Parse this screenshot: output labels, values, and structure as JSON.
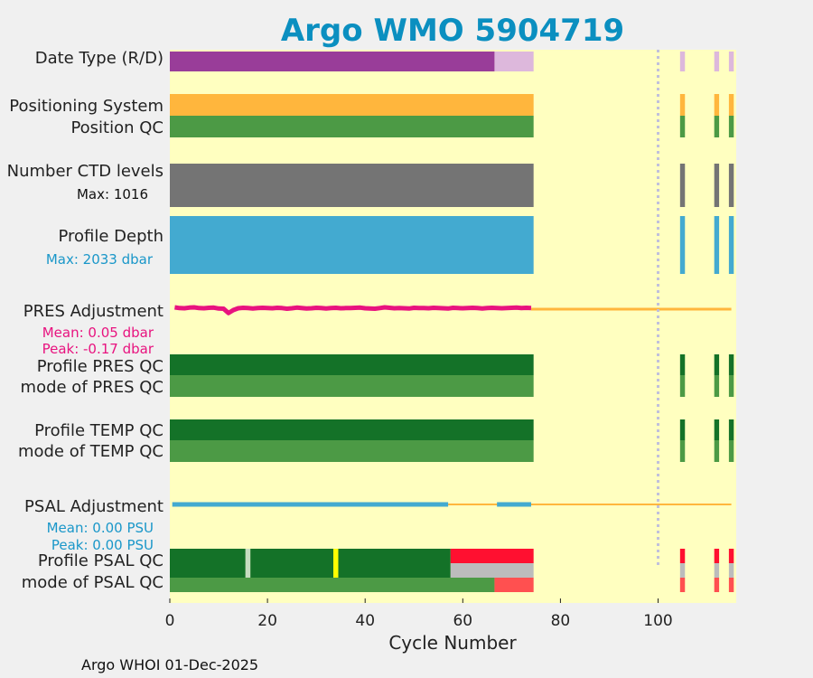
{
  "chart_data": {
    "type": "bar",
    "title": "Argo WMO 5904719",
    "xlabel": "Cycle Number",
    "xlim": [
      0,
      116
    ],
    "xticks": [
      0,
      20,
      40,
      60,
      80,
      100
    ],
    "dashed_reference_cycle": 100,
    "recent_cycles": [
      105,
      112,
      115
    ],
    "footer": "Argo WHOI 01-Dec-2025",
    "colors": {
      "plot_bg": "#ffffc0",
      "realtime": "#993d99",
      "delayed": "#ddb8dc",
      "positioning": "#ffb63d",
      "qc_good": "#4c9a45",
      "qc_dark_green": "#147228",
      "ctd": "#747474",
      "depth": "#43aad0",
      "pres_adj": "#e8137f",
      "adj_zero": "#ffb63d",
      "psal_adj": "#43aad0",
      "qc_bad": "#ff1030",
      "qc_grey": "#bcbcbc",
      "qc_light_red": "#ff5050",
      "qc_yellow": "#ffff00",
      "qc_pale": "#c6dcc0"
    },
    "rows": {
      "date_type": {
        "label": "Date Type (R/D)",
        "segments": [
          {
            "from": 0,
            "to": 66.5,
            "value": "R"
          },
          {
            "from": 66.5,
            "to": 74.5,
            "value": "D"
          }
        ]
      },
      "positioning": {
        "label": "Positioning System",
        "from": 0,
        "to": 74.5
      },
      "position_qc": {
        "label": "Position QC",
        "from": 0,
        "to": 74.5
      },
      "ctd_levels": {
        "label": "Number CTD levels",
        "max_label": "Max: 1016",
        "max": 1016,
        "from": 0,
        "to": 74.5
      },
      "profile_depth": {
        "label": "Profile Depth",
        "max_label": "Max: 2033 dbar",
        "max": 2033,
        "from": 0,
        "to": 74.5
      },
      "pres_adjustment": {
        "label": "PRES Adjustment",
        "mean_label": "Mean: 0.05 dbar",
        "peak_label": "Peak: -0.17 dbar",
        "cycles": [
          1,
          2,
          3,
          4,
          5,
          6,
          7,
          8,
          9,
          10,
          11,
          12,
          13,
          14,
          15,
          16,
          17,
          18,
          19,
          20,
          21,
          22,
          23,
          24,
          25,
          26,
          27,
          28,
          29,
          30,
          31,
          32,
          33,
          34,
          35,
          36,
          37,
          38,
          39,
          40,
          41,
          42,
          43,
          44,
          45,
          46,
          47,
          48,
          49,
          50,
          51,
          52,
          53,
          54,
          55,
          56,
          57,
          58,
          59,
          60,
          61,
          62,
          63,
          64,
          65,
          66,
          67,
          68,
          69,
          70,
          71,
          72,
          73,
          74
        ],
        "values": [
          0.08,
          0.05,
          0.04,
          0.07,
          0.08,
          0.05,
          0.04,
          0.06,
          0.07,
          0.03,
          0.02,
          -0.17,
          -0.04,
          0.04,
          0.06,
          0.05,
          0.03,
          0.05,
          0.06,
          0.05,
          0.04,
          0.06,
          0.05,
          0.02,
          0.04,
          0.07,
          0.05,
          0.03,
          0.04,
          0.06,
          0.05,
          0.03,
          0.05,
          0.06,
          0.04,
          0.05,
          0.05,
          0.06,
          0.07,
          0.04,
          0.03,
          0.02,
          0.05,
          0.08,
          0.06,
          0.04,
          0.05,
          0.04,
          0.03,
          0.06,
          0.05,
          0.05,
          0.04,
          0.06,
          0.05,
          0.04,
          0.03,
          0.06,
          0.05,
          0.04,
          0.05,
          0.06,
          0.05,
          0.03,
          0.05,
          0.06,
          0.05,
          0.04,
          0.05,
          0.06,
          0.07,
          0.05,
          0.06,
          0.05
        ]
      },
      "pres_qc": {
        "label": "Profile PRES QC",
        "from": 0,
        "to": 74.5
      },
      "pres_mode_qc": {
        "label": "mode of PRES QC",
        "from": 0,
        "to": 74.5
      },
      "temp_qc": {
        "label": "Profile TEMP QC",
        "from": 0,
        "to": 74.5
      },
      "temp_mode_qc": {
        "label": "mode of TEMP QC",
        "from": 0,
        "to": 74.5
      },
      "psal_adjustment": {
        "label": "PSAL Adjustment",
        "mean_label": "Mean: 0.00 PSU",
        "peak_label": "Peak: 0.00 PSU",
        "segments": [
          {
            "from": 0.5,
            "to": 57
          },
          {
            "from": 67,
            "to": 74
          }
        ],
        "zero_line": {
          "from": 57,
          "to": 115
        }
      },
      "psal_qc": {
        "label": "Profile PSAL QC",
        "segments": [
          {
            "from": 0,
            "to": 15.5,
            "color": "qc_dark_green"
          },
          {
            "from": 15.5,
            "to": 16.5,
            "color": "qc_pale"
          },
          {
            "from": 16.5,
            "to": 33.5,
            "color": "qc_dark_green"
          },
          {
            "from": 33.5,
            "to": 34.5,
            "color": "qc_yellow"
          },
          {
            "from": 34.5,
            "to": 57.5,
            "color": "qc_dark_green"
          },
          {
            "from": 57.5,
            "to": 74.5,
            "color": "qc_bad_split"
          }
        ]
      },
      "psal_mode_qc": {
        "label": "mode of PSAL QC",
        "segments": [
          {
            "from": 0,
            "to": 66.5,
            "color": "qc_good"
          },
          {
            "from": 66.5,
            "to": 74.5,
            "color": "qc_light_red"
          }
        ]
      }
    }
  }
}
